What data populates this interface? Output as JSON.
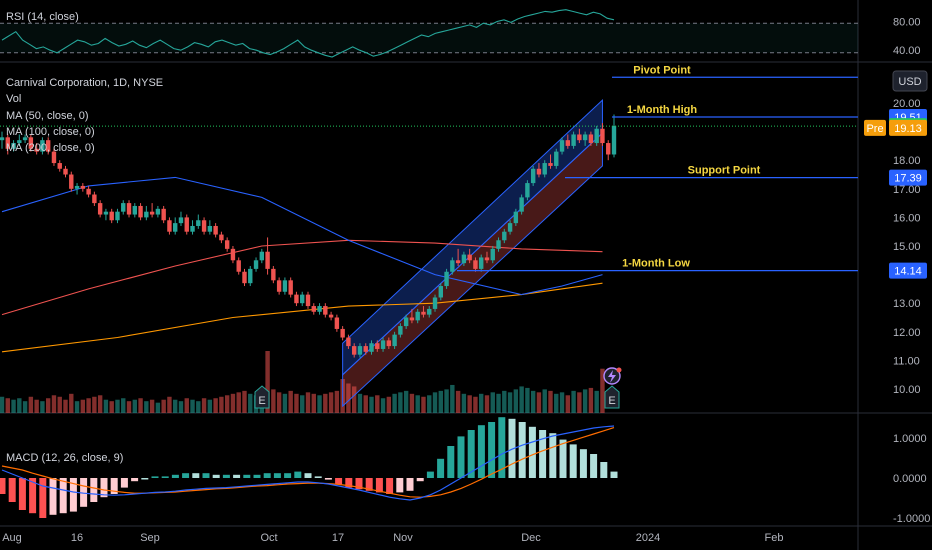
{
  "chart_data": {
    "type": "candlestick",
    "symbol_header": "Carnival Corporation, 1D, NYSE",
    "indicators": {
      "vol": "Vol",
      "ma50": "MA (50, close, 0)",
      "ma100": "MA (100, close, 0)",
      "ma200": "MA (200, close, 0)",
      "rsi": "RSI (14, close)",
      "macd": "MACD (12, 26, close, 9)"
    },
    "currency_button": "USD",
    "x_ticks": [
      "Aug",
      "16",
      "Sep",
      "Oct",
      "17",
      "Nov",
      "Dec",
      "2024",
      "Feb"
    ],
    "y_ticks": [
      "20.00",
      "19.00",
      "18.00",
      "17.00",
      "16.00",
      "15.00",
      "14.00",
      "13.00",
      "12.00",
      "11.00",
      "10.00"
    ],
    "ylim": [
      9.2,
      20.5
    ],
    "rsi_ticks": [
      "80.00",
      "40.00"
    ],
    "macd_ticks": [
      "1.0000",
      "0.0000",
      "-1.0000"
    ],
    "price_labels": [
      {
        "text": "19.51",
        "kind": "level",
        "color": "#2962ff"
      },
      {
        "text": "19.19",
        "kind": "last",
        "color": "#22c55e"
      },
      {
        "text": "Pre",
        "kind": "pre",
        "color": "#f59e0b"
      },
      {
        "text": "19.13",
        "kind": "pre",
        "color": "#f59e0b"
      },
      {
        "text": "17.39",
        "kind": "level",
        "color": "#2962ff"
      },
      {
        "text": "14.14",
        "kind": "level",
        "color": "#2962ff"
      }
    ],
    "levels": [
      {
        "name": "Pivot Point",
        "value": 20.9
      },
      {
        "name": "1-Month High",
        "value": 19.51
      },
      {
        "name": "Support Point",
        "value": 17.39
      },
      {
        "name": "1-Month Low",
        "value": 14.14
      }
    ],
    "event_badges": [
      "E",
      "E"
    ],
    "candles": [
      [
        18.7,
        19.0,
        18.4,
        18.8
      ],
      [
        18.8,
        18.9,
        18.2,
        18.4
      ],
      [
        18.4,
        18.7,
        18.3,
        18.6
      ],
      [
        18.6,
        18.9,
        18.5,
        18.7
      ],
      [
        18.7,
        18.9,
        18.6,
        18.8
      ],
      [
        18.8,
        18.9,
        18.3,
        18.4
      ],
      [
        18.4,
        18.6,
        18.2,
        18.3
      ],
      [
        18.3,
        18.8,
        18.2,
        18.7
      ],
      [
        18.7,
        18.8,
        18.2,
        18.3
      ],
      [
        18.3,
        18.4,
        17.8,
        17.9
      ],
      [
        17.9,
        18.0,
        17.6,
        17.7
      ],
      [
        17.7,
        17.8,
        17.4,
        17.5
      ],
      [
        17.5,
        17.6,
        16.9,
        17.0
      ],
      [
        17.0,
        17.2,
        16.8,
        17.1
      ],
      [
        17.1,
        17.2,
        16.9,
        17.0
      ],
      [
        17.0,
        17.1,
        16.7,
        16.8
      ],
      [
        16.8,
        16.9,
        16.4,
        16.5
      ],
      [
        16.5,
        16.6,
        16.0,
        16.1
      ],
      [
        16.1,
        16.3,
        15.9,
        16.2
      ],
      [
        16.2,
        16.3,
        15.8,
        15.9
      ],
      [
        15.9,
        16.3,
        15.8,
        16.2
      ],
      [
        16.2,
        16.6,
        16.1,
        16.5
      ],
      [
        16.5,
        16.6,
        16.0,
        16.1
      ],
      [
        16.1,
        16.5,
        16.0,
        16.4
      ],
      [
        16.4,
        16.5,
        15.9,
        16.0
      ],
      [
        16.0,
        16.4,
        15.9,
        16.2
      ],
      [
        16.2,
        16.5,
        16.0,
        16.1
      ],
      [
        16.1,
        16.4,
        16.0,
        16.3
      ],
      [
        16.3,
        16.4,
        15.8,
        15.9
      ],
      [
        15.9,
        16.0,
        15.4,
        15.5
      ],
      [
        15.5,
        16.0,
        15.4,
        15.8
      ],
      [
        15.8,
        16.2,
        15.7,
        16.0
      ],
      [
        16.0,
        16.1,
        15.4,
        15.5
      ],
      [
        15.5,
        15.9,
        15.4,
        15.7
      ],
      [
        15.7,
        16.1,
        15.6,
        15.9
      ],
      [
        15.9,
        16.0,
        15.4,
        15.5
      ],
      [
        15.5,
        15.9,
        15.4,
        15.7
      ],
      [
        15.7,
        15.8,
        15.3,
        15.4
      ],
      [
        15.4,
        15.5,
        15.1,
        15.2
      ],
      [
        15.2,
        15.3,
        14.8,
        14.9
      ],
      [
        14.9,
        15.0,
        14.4,
        14.5
      ],
      [
        14.5,
        14.6,
        14.0,
        14.1
      ],
      [
        14.1,
        14.2,
        13.6,
        13.7
      ],
      [
        13.7,
        14.3,
        13.6,
        14.2
      ],
      [
        14.2,
        14.6,
        14.1,
        14.5
      ],
      [
        14.5,
        14.9,
        14.4,
        14.8
      ],
      [
        14.8,
        15.3,
        14.0,
        14.2
      ],
      [
        14.2,
        14.3,
        13.7,
        13.8
      ],
      [
        13.8,
        13.9,
        13.3,
        13.4
      ],
      [
        13.4,
        13.9,
        13.3,
        13.8
      ],
      [
        13.8,
        13.9,
        13.2,
        13.3
      ],
      [
        13.3,
        13.4,
        12.9,
        13.0
      ],
      [
        13.0,
        13.4,
        12.9,
        13.3
      ],
      [
        13.3,
        13.4,
        12.8,
        12.9
      ],
      [
        12.9,
        13.0,
        12.6,
        12.7
      ],
      [
        12.7,
        13.0,
        12.6,
        12.9
      ],
      [
        12.9,
        13.0,
        12.5,
        12.6
      ],
      [
        12.6,
        12.7,
        12.4,
        12.5
      ],
      [
        12.5,
        12.6,
        12.0,
        12.1
      ],
      [
        12.1,
        12.2,
        11.7,
        11.8
      ],
      [
        11.8,
        11.9,
        11.4,
        11.5
      ],
      [
        11.5,
        11.6,
        11.1,
        11.2
      ],
      [
        11.2,
        11.6,
        11.1,
        11.5
      ],
      [
        11.5,
        11.6,
        11.2,
        11.3
      ],
      [
        11.3,
        11.7,
        11.2,
        11.6
      ],
      [
        11.6,
        11.7,
        11.3,
        11.4
      ],
      [
        11.4,
        11.8,
        11.3,
        11.7
      ],
      [
        11.7,
        11.8,
        11.4,
        11.5
      ],
      [
        11.5,
        12.0,
        11.4,
        11.9
      ],
      [
        11.9,
        12.3,
        11.8,
        12.2
      ],
      [
        12.2,
        12.6,
        12.1,
        12.5
      ],
      [
        12.5,
        12.8,
        12.3,
        12.4
      ],
      [
        12.4,
        12.8,
        12.3,
        12.7
      ],
      [
        12.7,
        12.9,
        12.5,
        12.6
      ],
      [
        12.6,
        12.9,
        12.5,
        12.8
      ],
      [
        12.8,
        13.3,
        12.7,
        13.2
      ],
      [
        13.2,
        13.7,
        13.1,
        13.6
      ],
      [
        13.6,
        14.2,
        13.5,
        14.1
      ],
      [
        14.1,
        14.6,
        14.0,
        14.5
      ],
      [
        14.5,
        14.9,
        14.3,
        14.4
      ],
      [
        14.4,
        14.8,
        14.3,
        14.7
      ],
      [
        14.7,
        14.9,
        14.4,
        14.5
      ],
      [
        14.5,
        14.6,
        14.1,
        14.2
      ],
      [
        14.2,
        14.7,
        14.1,
        14.6
      ],
      [
        14.6,
        14.8,
        14.4,
        14.5
      ],
      [
        14.5,
        15.0,
        14.4,
        14.9
      ],
      [
        14.9,
        15.3,
        14.8,
        15.2
      ],
      [
        15.2,
        15.6,
        15.1,
        15.5
      ],
      [
        15.5,
        15.9,
        15.4,
        15.8
      ],
      [
        15.8,
        16.3,
        15.7,
        16.2
      ],
      [
        16.2,
        16.8,
        16.1,
        16.7
      ],
      [
        16.7,
        17.3,
        16.6,
        17.2
      ],
      [
        17.2,
        17.8,
        17.1,
        17.7
      ],
      [
        17.7,
        17.9,
        17.4,
        17.5
      ],
      [
        17.5,
        18.0,
        17.4,
        17.9
      ],
      [
        17.9,
        18.2,
        17.7,
        17.8
      ],
      [
        17.8,
        18.4,
        17.7,
        18.3
      ],
      [
        18.3,
        18.8,
        18.2,
        18.7
      ],
      [
        18.7,
        18.9,
        18.4,
        18.5
      ],
      [
        18.5,
        19.0,
        18.4,
        18.9
      ],
      [
        18.9,
        19.1,
        18.6,
        18.7
      ],
      [
        18.7,
        19.0,
        18.5,
        18.9
      ],
      [
        18.9,
        19.0,
        18.5,
        18.6
      ],
      [
        18.6,
        19.2,
        18.5,
        19.1
      ],
      [
        19.1,
        19.3,
        18.5,
        18.6
      ],
      [
        18.6,
        18.7,
        18.0,
        18.2
      ],
      [
        18.2,
        19.6,
        18.1,
        19.2
      ]
    ],
    "volume": [
      1.1,
      1.0,
      0.9,
      1.0,
      0.8,
      1.1,
      0.9,
      0.8,
      1.0,
      1.2,
      1.1,
      0.9,
      1.3,
      0.8,
      0.9,
      1.0,
      1.1,
      1.2,
      0.9,
      0.8,
      0.9,
      1.0,
      0.8,
      0.9,
      1.0,
      0.8,
      0.9,
      0.7,
      0.9,
      1.1,
      0.9,
      0.8,
      1.0,
      0.9,
      0.8,
      1.0,
      0.9,
      1.0,
      1.1,
      1.2,
      1.3,
      1.4,
      1.5,
      1.3,
      1.2,
      1.4,
      4.2,
      1.6,
      1.4,
      1.3,
      1.5,
      1.3,
      1.2,
      1.4,
      1.3,
      1.2,
      1.3,
      1.4,
      1.5,
      2.3,
      2.0,
      1.8,
      1.3,
      1.2,
      1.1,
      1.2,
      1.0,
      1.1,
      1.3,
      1.4,
      1.5,
      1.3,
      1.2,
      1.1,
      1.2,
      1.4,
      1.5,
      1.6,
      1.9,
      1.5,
      1.3,
      1.2,
      1.1,
      1.3,
      1.2,
      1.4,
      1.3,
      1.5,
      1.4,
      1.6,
      1.8,
      1.7,
      1.5,
      1.4,
      1.6,
      1.5,
      1.3,
      1.4,
      1.2,
      1.5,
      1.4,
      1.6,
      1.7,
      1.5,
      3.0
    ],
    "ma50": [
      [
        0,
        16.2
      ],
      [
        15,
        17.1
      ],
      [
        30,
        17.4
      ],
      [
        45,
        16.7
      ],
      [
        60,
        15.2
      ],
      [
        75,
        14.0
      ],
      [
        90,
        13.3
      ],
      [
        97,
        13.6
      ],
      [
        104,
        14.0
      ]
    ],
    "ma100": [
      [
        0,
        12.6
      ],
      [
        15,
        13.5
      ],
      [
        30,
        14.3
      ],
      [
        45,
        15.0
      ],
      [
        60,
        15.2
      ],
      [
        75,
        15.1
      ],
      [
        90,
        14.9
      ],
      [
        104,
        14.8
      ]
    ],
    "ma200": [
      [
        0,
        11.3
      ],
      [
        20,
        11.8
      ],
      [
        40,
        12.5
      ],
      [
        60,
        12.9
      ],
      [
        75,
        13.0
      ],
      [
        90,
        13.3
      ],
      [
        104,
        13.7
      ]
    ],
    "channel": {
      "start": 59,
      "end": 104,
      "bottom_start": 9.4,
      "bottom_end": 17.8,
      "top_start": 11.6,
      "top_end": 20.1
    },
    "rsi": [
      50,
      55,
      60,
      50,
      45,
      40,
      42,
      38,
      35,
      40,
      45,
      50,
      48,
      44,
      46,
      52,
      47,
      43,
      45,
      49,
      44,
      41,
      46,
      50,
      45,
      40,
      38,
      42,
      47,
      45,
      42,
      48,
      50,
      47,
      44,
      46,
      40,
      38,
      35,
      33,
      36,
      40,
      45,
      50,
      42,
      38,
      35,
      32,
      30,
      34,
      38,
      42,
      38,
      35,
      31,
      33,
      36,
      40,
      44,
      48,
      52,
      56,
      54,
      58,
      60,
      62,
      64,
      66,
      68,
      65,
      70,
      68,
      72,
      74,
      71,
      75,
      78,
      80,
      82,
      84,
      83,
      85,
      86,
      84,
      82,
      80,
      83,
      81,
      76,
      74
    ],
    "macd": [
      0.2,
      0.1,
      0.0,
      -0.1,
      -0.2,
      -0.25,
      -0.3,
      -0.35,
      -0.38,
      -0.4,
      -0.42,
      -0.43,
      -0.42,
      -0.4,
      -0.38,
      -0.36,
      -0.35,
      -0.33,
      -0.3,
      -0.28,
      -0.26,
      -0.25,
      -0.24,
      -0.22,
      -0.2,
      -0.18,
      -0.16,
      -0.14,
      -0.12,
      -0.1,
      -0.1,
      -0.12,
      -0.15,
      -0.2,
      -0.25,
      -0.3,
      -0.36,
      -0.42,
      -0.48,
      -0.52,
      -0.55,
      -0.5,
      -0.42,
      -0.3,
      -0.15,
      0.0,
      0.15,
      0.3,
      0.45,
      0.6,
      0.72,
      0.82,
      0.9,
      0.98,
      1.05,
      1.1,
      1.15,
      1.2,
      1.25,
      1.28,
      1.3
    ],
    "macd_signal": [
      0.3,
      0.25,
      0.2,
      0.12,
      0.05,
      -0.02,
      -0.08,
      -0.14,
      -0.2,
      -0.25,
      -0.3,
      -0.33,
      -0.36,
      -0.38,
      -0.38,
      -0.37,
      -0.36,
      -0.35,
      -0.33,
      -0.31,
      -0.29,
      -0.27,
      -0.26,
      -0.24,
      -0.22,
      -0.2,
      -0.19,
      -0.17,
      -0.15,
      -0.14,
      -0.13,
      -0.13,
      -0.14,
      -0.16,
      -0.19,
      -0.23,
      -0.28,
      -0.33,
      -0.38,
      -0.43,
      -0.47,
      -0.48,
      -0.46,
      -0.42,
      -0.35,
      -0.26,
      -0.15,
      -0.03,
      0.1,
      0.22,
      0.35,
      0.47,
      0.58,
      0.68,
      0.77,
      0.86,
      0.94,
      1.02,
      1.1,
      1.18,
      1.26
    ],
    "colors": {
      "up": "#26a69a",
      "down": "#ef5350",
      "ma50": "#2962ff",
      "ma100": "#ef5350",
      "ma200": "#ff9800",
      "level": "#2962ff",
      "macd": "#2962ff",
      "signal": "#ff6d00",
      "rsi": "#26a69a"
    }
  }
}
